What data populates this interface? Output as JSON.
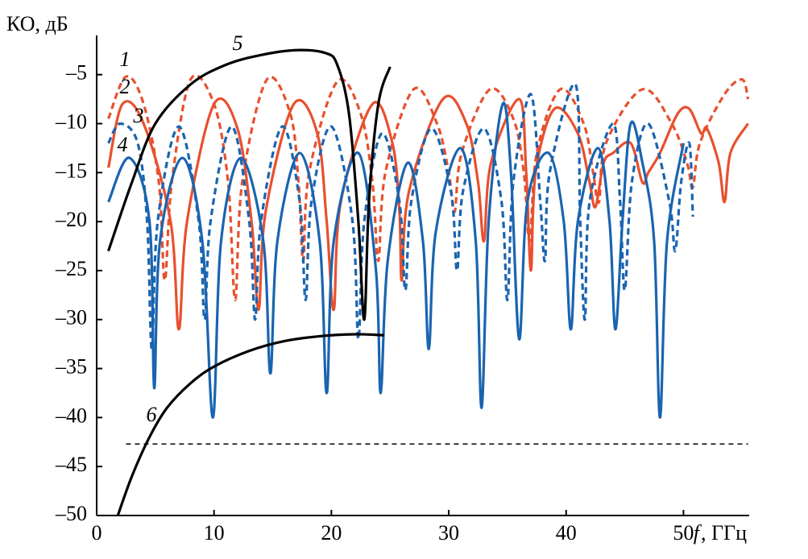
{
  "chart_data": {
    "type": "line",
    "y_label": "КО, дБ",
    "x_label_symbol": "f",
    "x_label_unit": ", ГГц",
    "xlim": [
      0,
      55.6
    ],
    "ylim": [
      -50,
      -1
    ],
    "xticks": [
      0,
      10,
      20,
      30,
      40,
      50
    ],
    "yticks": [
      {
        "value": -5,
        "label": "–5"
      },
      {
        "value": -10,
        "label": "–10"
      },
      {
        "value": -15,
        "label": "–15"
      },
      {
        "value": -20,
        "label": "–20"
      },
      {
        "value": -25,
        "label": "–25"
      },
      {
        "value": -30,
        "label": "–30"
      },
      {
        "value": -35,
        "label": "–35"
      },
      {
        "value": -40,
        "label": "–40"
      },
      {
        "value": -45,
        "label": "–45"
      },
      {
        "value": -50,
        "label": "–50"
      }
    ],
    "grid": false,
    "reference_line": {
      "value": -42.7,
      "x": [
        2.5,
        55.5
      ],
      "color": "#000000",
      "dashed": true
    },
    "series": [
      {
        "name": "1",
        "color": "#e8502e",
        "dashed": true,
        "x": [
          1,
          2.5,
          4,
          5.3,
          5.8,
          6.4,
          8,
          10,
          11.2,
          11.8,
          12.4,
          14.5,
          16.5,
          17.2,
          17.6,
          18.1,
          20.5,
          22.5,
          23.5,
          24,
          24.6,
          27,
          29,
          30,
          30.5,
          31.1,
          33.5,
          35.5,
          36.4,
          36.9,
          37.5,
          39.5,
          41.5,
          42.3,
          42.8,
          43.4,
          46.5,
          49,
          50.3,
          50.8,
          51.4,
          53.5,
          55,
          55.5
        ],
        "values": [
          -9.5,
          -5.2,
          -8,
          -16,
          -26,
          -16,
          -5.5,
          -8,
          -16,
          -28,
          -16,
          -5.5,
          -9,
          -16,
          -24,
          -15,
          -5.7,
          -9,
          -16,
          -24,
          -15,
          -6.5,
          -10,
          -15,
          -19,
          -13,
          -6.5,
          -9.5,
          -15,
          -22,
          -13,
          -6.5,
          -10,
          -15,
          -18,
          -12,
          -6.5,
          -10,
          -14,
          -16.5,
          -12,
          -7,
          -5.5,
          -7.5
        ]
      },
      {
        "name": "2",
        "color": "#e8502e",
        "dashed": false,
        "x": [
          1,
          2.2,
          4,
          6.3,
          7,
          7.7,
          10,
          12,
          13.2,
          13.8,
          14.4,
          16.8,
          18.8,
          19.6,
          20.2,
          20.8,
          23.5,
          25.2,
          25.8,
          26,
          26.6,
          29.5,
          31.5,
          32.5,
          33,
          33.6,
          36,
          36.6,
          37,
          37.4,
          39,
          41,
          42,
          42.5,
          43.2,
          44,
          45.5,
          46.5,
          47,
          48,
          49.5,
          50.5,
          51.5,
          52,
          53,
          53.5,
          54,
          55.5
        ],
        "values": [
          -14.5,
          -8,
          -10,
          -20,
          -31,
          -20,
          -8,
          -10.5,
          -20,
          -29,
          -19,
          -8,
          -11,
          -20,
          -29,
          -18,
          -8,
          -12,
          -19,
          -26,
          -17,
          -7.5,
          -10,
          -16,
          -22,
          -14,
          -7.5,
          -15,
          -25,
          -15,
          -8.5,
          -11,
          -16,
          -18.5,
          -14,
          -13,
          -12,
          -16,
          -15,
          -13,
          -9,
          -8.5,
          -11,
          -10.5,
          -14,
          -18,
          -13,
          -10
        ]
      },
      {
        "name": "3",
        "color": "#1a64b0",
        "dashed": true,
        "x": [
          1,
          2,
          3.5,
          4.3,
          4.7,
          5.2,
          7,
          8.7,
          9.2,
          9.7,
          11.5,
          13,
          13.5,
          14,
          15.8,
          17.3,
          17.8,
          18.3,
          20,
          21.8,
          22.3,
          22.8,
          24.3,
          25.8,
          26.3,
          26.8,
          28.5,
          30.2,
          30.7,
          31.2,
          33,
          34.5,
          35,
          35.5,
          37,
          37.8,
          38.2,
          38.6,
          40.8,
          41.2,
          41.6,
          42,
          44,
          44.6,
          45,
          45.6,
          47,
          48.8,
          49.3,
          49.8,
          50.5,
          50.8
        ],
        "values": [
          -12,
          -10,
          -12,
          -20,
          -33,
          -20,
          -10.3,
          -20,
          -30,
          -20,
          -10.3,
          -20,
          -30,
          -20,
          -10.3,
          -18,
          -28,
          -18,
          -10.3,
          -20,
          -32,
          -20,
          -11,
          -18,
          -27,
          -18,
          -10.5,
          -17,
          -25,
          -17,
          -10.5,
          -18,
          -28,
          -16,
          -7,
          -18,
          -24,
          -15,
          -6,
          -20,
          -30,
          -18,
          -10,
          -18,
          -27,
          -16,
          -10,
          -18,
          -23,
          -16,
          -12,
          -19.5
        ]
      },
      {
        "name": "4",
        "color": "#1a64b0",
        "dashed": false,
        "x": [
          1,
          2.8,
          4.5,
          4.9,
          5.4,
          7.3,
          9,
          9.9,
          10.6,
          12.3,
          14.2,
          14.8,
          15.4,
          17.3,
          19,
          19.6,
          20.2,
          22.3,
          23.8,
          24.2,
          24.8,
          26.5,
          27.8,
          28.3,
          28.9,
          31,
          32.3,
          32.8,
          33.4,
          34.6,
          35.3,
          36,
          36.7,
          38.5,
          39.8,
          40.4,
          41,
          42.7,
          43.7,
          44.2,
          44.8,
          45.5,
          46.5,
          47.5,
          48,
          48.6,
          50
        ],
        "values": [
          -18,
          -13.5,
          -20,
          -37,
          -22,
          -13.5,
          -22,
          -40,
          -22,
          -13.5,
          -22,
          -35.5,
          -22,
          -13,
          -22,
          -37.5,
          -22,
          -13,
          -25,
          -37.5,
          -24,
          -14,
          -22,
          -33,
          -21,
          -12.5,
          -22,
          -39,
          -20,
          -8,
          -15,
          -32,
          -18,
          -13,
          -20,
          -31,
          -20,
          -12.5,
          -20,
          -31,
          -20,
          -10,
          -14,
          -22,
          -40,
          -22,
          -12
        ]
      },
      {
        "name": "5",
        "color": "#000000",
        "dashed": false,
        "x": [
          1,
          3,
          5,
          8,
          11,
          14,
          17,
          19.5,
          20.5,
          21.5,
          22.3,
          22.8,
          23.2,
          24,
          25
        ],
        "values": [
          -23,
          -16,
          -10,
          -6,
          -4,
          -3,
          -2.5,
          -2.8,
          -4,
          -9,
          -20,
          -30,
          -18,
          -8,
          -4.2
        ]
      },
      {
        "name": "6",
        "color": "#000000",
        "dashed": false,
        "x": [
          1.8,
          3,
          4.5,
          6,
          8,
          10,
          13,
          16,
          19,
          22,
          24.5
        ],
        "values": [
          -50,
          -46,
          -42,
          -39,
          -36.5,
          -34.8,
          -33.2,
          -32.2,
          -31.7,
          -31.5,
          -31.6
        ]
      }
    ]
  }
}
